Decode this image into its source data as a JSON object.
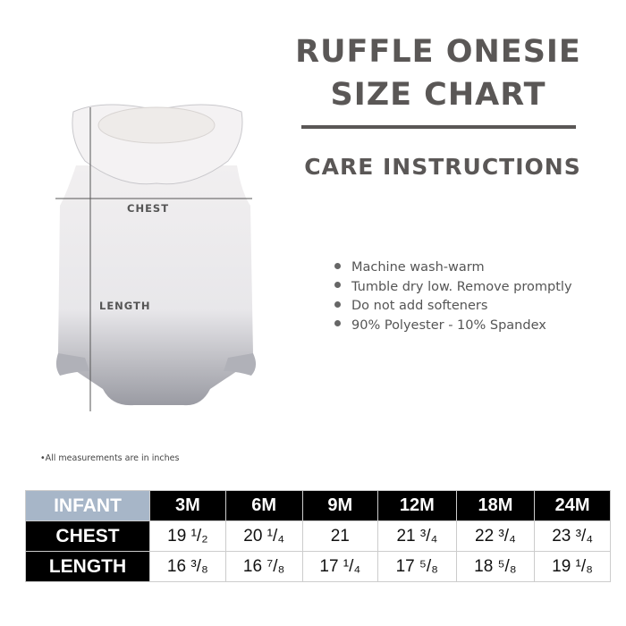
{
  "title": {
    "line1": "RUFFLE ONESIE",
    "line2": "SIZE CHART"
  },
  "care": {
    "heading": "CARE INSTRUCTIONS",
    "items": [
      "Machine wash-warm",
      "Tumble dry low. Remove promptly",
      "Do not add softeners",
      "90% Polyester - 10% Spandex"
    ]
  },
  "diagram": {
    "chest_label": "CHEST",
    "length_label": "LENGTH"
  },
  "note": "•All measurements are in inches",
  "table": {
    "corner": "INFANT",
    "sizes": [
      "3M",
      "6M",
      "9M",
      "12M",
      "18M",
      "24M"
    ],
    "rows": [
      {
        "label": "CHEST",
        "values": [
          "19 ¹/₂",
          "20 ¹/₄",
          "21",
          "21 ³/₄",
          "22 ³/₄",
          "23 ³/₄"
        ]
      },
      {
        "label": "LENGTH",
        "values": [
          "16 ³/₈",
          "16 ⁷/₈",
          "17 ¹/₄",
          "17 ⁵/₈",
          "18 ⁵/₈",
          "19 ¹/₈"
        ]
      }
    ]
  },
  "colors": {
    "heading": "#5a5756",
    "corner": "#a7b6c8",
    "header_bg": "#000000"
  }
}
